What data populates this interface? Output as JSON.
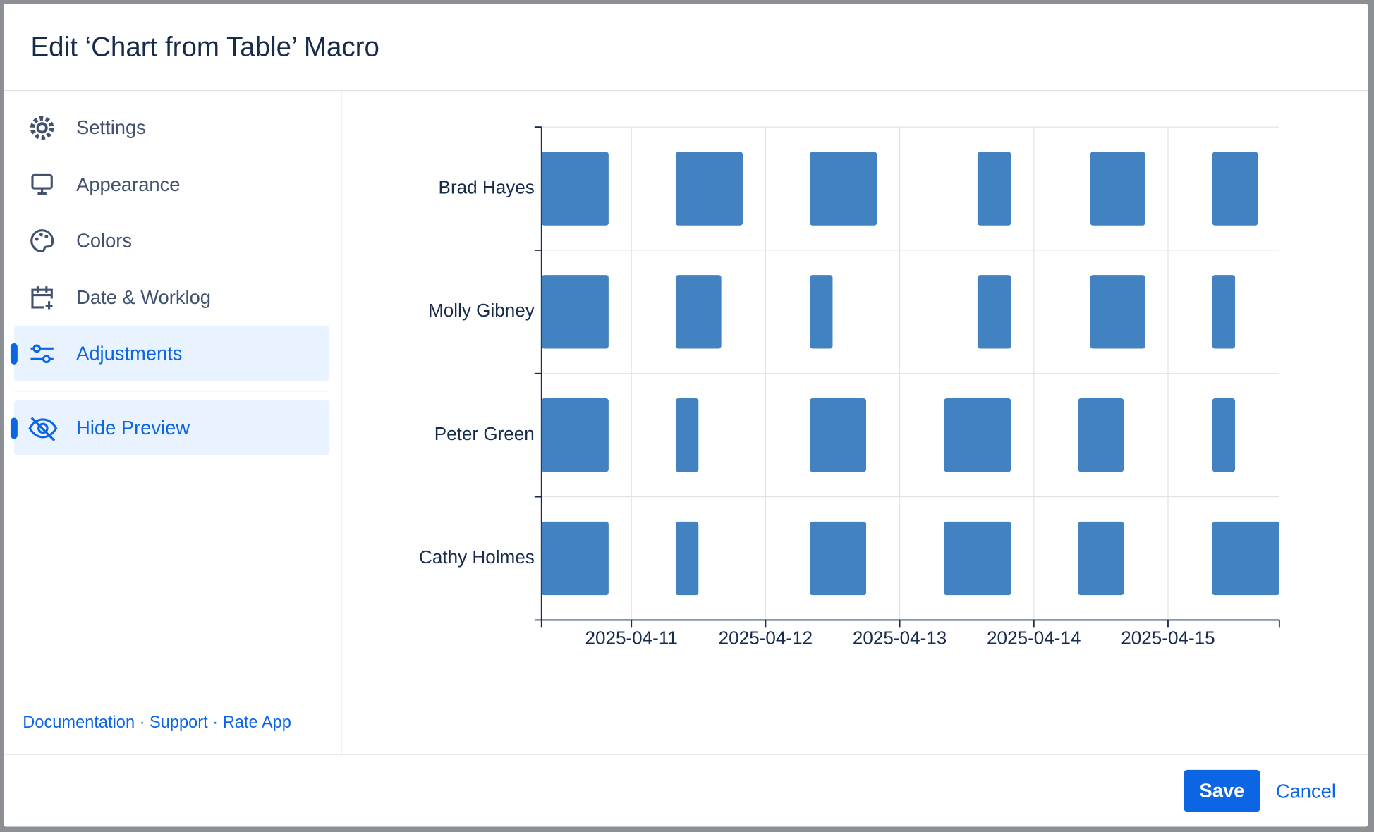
{
  "header": {
    "title": "Edit ‘Chart from Table’ Macro"
  },
  "nav": {
    "items": [
      "Settings",
      "Appearance",
      "Colors",
      "Date & Worklog",
      "Adjustments"
    ],
    "preview": "Hide Preview"
  },
  "footer": {
    "links": [
      "Documentation",
      "Support",
      "Rate App"
    ]
  },
  "buttons": {
    "save": "Save",
    "cancel": "Cancel"
  },
  "chart_data": {
    "type": "gantt",
    "categories": [
      "Brad Hayes",
      "Molly Gibney",
      "Peter Green",
      "Cathy Holmes"
    ],
    "values": [
      [
        [
          10.33,
          10.83
        ],
        [
          11.33,
          11.83
        ],
        [
          12.33,
          12.83
        ],
        [
          13.58,
          13.83
        ],
        [
          14.42,
          14.83
        ],
        [
          15.33,
          15.67
        ]
      ],
      [
        [
          10.33,
          10.83
        ],
        [
          11.33,
          11.67
        ],
        [
          12.33,
          12.5
        ],
        [
          13.58,
          13.83
        ],
        [
          14.42,
          14.83
        ],
        [
          15.33,
          15.5
        ]
      ],
      [
        [
          10.33,
          10.83
        ],
        [
          11.33,
          11.5
        ],
        [
          12.33,
          12.75
        ],
        [
          13.33,
          13.83
        ],
        [
          14.33,
          14.67
        ],
        [
          15.33,
          15.5
        ]
      ],
      [
        [
          10.33,
          10.83
        ],
        [
          11.33,
          11.5
        ],
        [
          12.33,
          12.75
        ],
        [
          13.33,
          13.83
        ],
        [
          14.33,
          14.67
        ],
        [
          15.33,
          15.83
        ]
      ]
    ],
    "color": "#4382c0",
    "xlim": [
      10.33,
      15.83
    ],
    "xticks": [
      {
        "value": 11,
        "label": "2025-04-11"
      },
      {
        "value": 12,
        "label": "2025-04-12"
      },
      {
        "value": 13,
        "label": "2025-04-13"
      },
      {
        "value": 14,
        "label": "2025-04-14"
      },
      {
        "value": 15,
        "label": "2025-04-15"
      }
    ],
    "grid": true
  }
}
